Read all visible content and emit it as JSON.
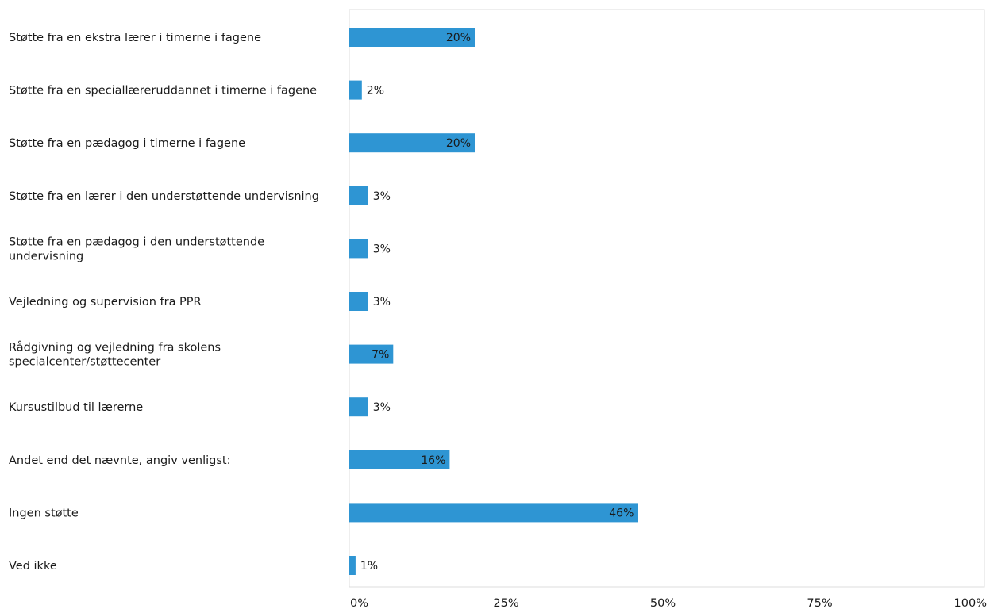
{
  "chart_data": {
    "type": "bar",
    "orientation": "horizontal",
    "title": "",
    "xlabel": "",
    "ylabel": "",
    "xlim": [
      0,
      100
    ],
    "value_suffix": "%",
    "grid": false,
    "legend": "none",
    "bar_color": "#2e95d3",
    "categories": [
      [
        "Støtte fra en ekstra lærer i timerne i fagene"
      ],
      [
        "Støtte fra en speciallæreruddannet i timerne i fagene"
      ],
      [
        "Støtte fra en pædagog i timerne i fagene"
      ],
      [
        "Støtte fra en lærer i den understøttende undervisning"
      ],
      [
        "Støtte fra en pædagog i den understøttende",
        "undervisning"
      ],
      [
        "Vejledning og supervision fra PPR"
      ],
      [
        "Rådgivning og vejledning fra skolens",
        "specialcenter/støttecenter"
      ],
      [
        "Kursustilbud til lærerne"
      ],
      [
        "Andet end det nævnte, angiv venligst:"
      ],
      [
        "Ingen støtte"
      ],
      [
        "Ved ikke"
      ]
    ],
    "values": [
      20,
      2,
      20,
      3,
      3,
      3,
      7,
      3,
      16,
      46,
      1
    ],
    "label_inside": [
      true,
      false,
      true,
      false,
      false,
      false,
      true,
      false,
      true,
      true,
      false
    ],
    "x_ticks": [
      {
        "value": 0,
        "label": "0%"
      },
      {
        "value": 25,
        "label": "25%"
      },
      {
        "value": 50,
        "label": "50%"
      },
      {
        "value": 75,
        "label": "75%"
      },
      {
        "value": 100,
        "label": "100%"
      }
    ]
  }
}
